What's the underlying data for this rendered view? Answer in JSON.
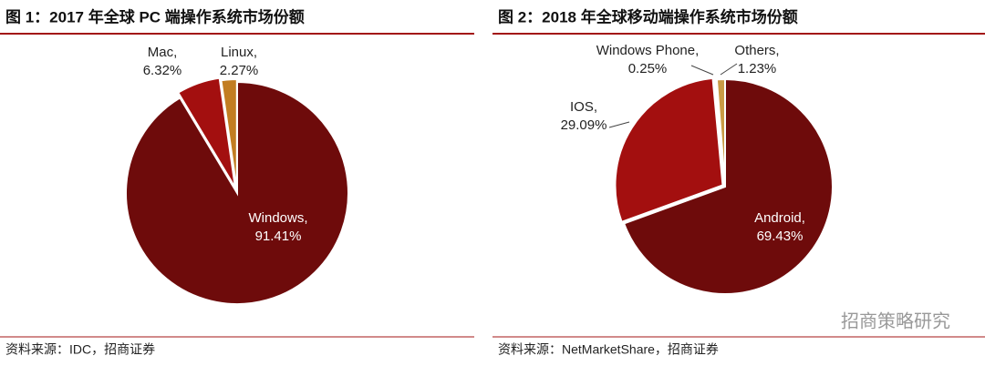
{
  "chart_data": [
    {
      "type": "pie",
      "title": "图 1：2017 年全球 PC 端操作系统市场份额",
      "categories": [
        "Windows,",
        "Mac,",
        "Linux,"
      ],
      "values": [
        91.41,
        6.32,
        2.27
      ],
      "value_labels": [
        "91.41%",
        "6.32%",
        "2.27%"
      ],
      "colors": [
        "#6e0b0b",
        "#a30f0f",
        "#c27d22"
      ],
      "source": "资料来源：IDC，招商证券"
    },
    {
      "type": "pie",
      "title": "图 2：2018 年全球移动端操作系统市场份额",
      "categories": [
        "Android,",
        "IOS,",
        "Windows Phone,",
        "Others,"
      ],
      "values": [
        69.43,
        29.09,
        0.25,
        1.23
      ],
      "value_labels": [
        "69.43%",
        "29.09%",
        "0.25%",
        "1.23%"
      ],
      "colors": [
        "#6e0b0b",
        "#a30f0f",
        "#ead9b5",
        "#c99b45"
      ],
      "source": "资料来源：NetMarketShare，招商证券"
    }
  ],
  "watermark": "招商策略研究"
}
